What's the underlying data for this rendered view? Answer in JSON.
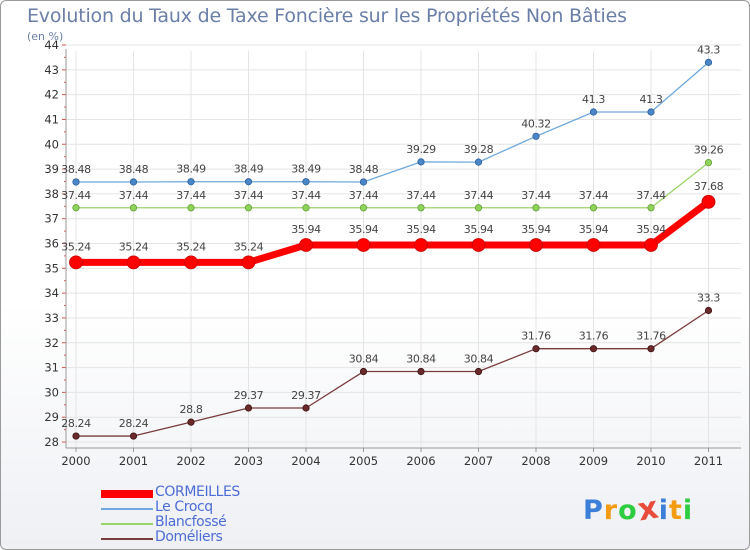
{
  "chart_data": {
    "type": "line",
    "title": "Evolution du Taux de Taxe Foncière sur les Propriétés Non Bâties",
    "subtitle": "(en %)",
    "x": [
      "2000",
      "2001",
      "2002",
      "2003",
      "2004",
      "2005",
      "2006",
      "2007",
      "2008",
      "2009",
      "2010",
      "2011"
    ],
    "ylim": [
      28,
      44
    ],
    "yticks": [
      "28",
      "29",
      "30",
      "31",
      "32",
      "33",
      "34",
      "35",
      "36",
      "37",
      "38",
      "39",
      "40",
      "41",
      "42",
      "43",
      "44"
    ],
    "grid": true,
    "legend_position": "bottom-left",
    "series": [
      {
        "name": "CORMEILLES",
        "color": "#ff0000",
        "values": [
          35.24,
          35.24,
          35.24,
          35.24,
          35.94,
          35.94,
          35.94,
          35.94,
          35.94,
          35.94,
          35.94,
          37.68
        ],
        "labels": [
          "35.24",
          "35.24",
          "35.24",
          "35.24",
          "35.94",
          "35.94",
          "35.94",
          "35.94",
          "35.94",
          "35.94",
          "35.94",
          "37.68"
        ]
      },
      {
        "name": "Le Crocq",
        "color": "#6fa8dc",
        "values": [
          38.48,
          38.48,
          38.49,
          38.49,
          38.49,
          38.48,
          39.29,
          39.28,
          40.32,
          41.3,
          41.3,
          43.3
        ],
        "labels": [
          "38.48",
          "38.48",
          "38.49",
          "38.49",
          "38.49",
          "38.48",
          "39.29",
          "39.28",
          "40.32",
          "41.3",
          "41.3",
          "43.3"
        ]
      },
      {
        "name": "Blancfossé",
        "color": "#9ad36a",
        "values": [
          37.44,
          37.44,
          37.44,
          37.44,
          37.44,
          37.44,
          37.44,
          37.44,
          37.44,
          37.44,
          37.44,
          39.26
        ],
        "labels": [
          "37.44",
          "37.44",
          "37.44",
          "37.44",
          "37.44",
          "37.44",
          "37.44",
          "37.44",
          "37.44",
          "37.44",
          "37.44",
          "39.26"
        ]
      },
      {
        "name": "Doméliers",
        "color": "#7a3b3b",
        "values": [
          28.24,
          28.24,
          28.8,
          29.37,
          29.37,
          30.84,
          30.84,
          30.84,
          31.76,
          31.76,
          31.76,
          33.3
        ],
        "labels": [
          "28.24",
          "28.24",
          "28.8",
          "29.37",
          "29.37",
          "30.84",
          "30.84",
          "30.84",
          "31.76",
          "31.76",
          "31.76",
          "33.3"
        ]
      }
    ]
  },
  "logo": {
    "letters": [
      "P",
      "r",
      "o",
      "x",
      "i",
      "t",
      "i"
    ],
    "colors": [
      "#3b7fd9",
      "#f39c12",
      "#2ecc40",
      "#e74c3c",
      "#3b7fd9",
      "#f39c12",
      "#2ecc40"
    ]
  }
}
